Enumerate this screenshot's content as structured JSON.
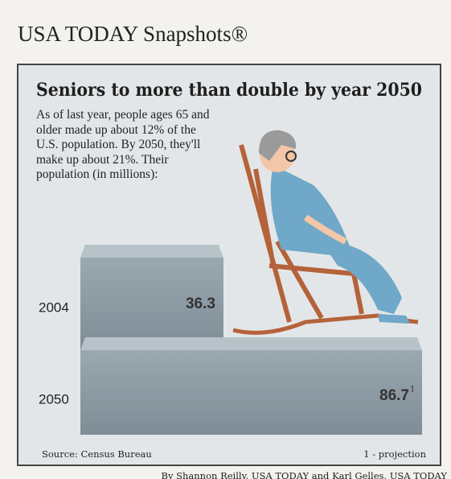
{
  "chart_data": {
    "type": "bar",
    "orientation": "horizontal",
    "header": "USA TODAY Snapshots®",
    "title": "Seniors to more than double by year 2050",
    "subtitle": "As of last year, people ages 65 and older made up about 12% of the U.S. population. By 2050, they'll make up about 21%. Their population (in millions):",
    "categories": [
      "2004",
      "2050"
    ],
    "values": [
      36.3,
      86.7
    ],
    "footnote_mark": "1",
    "color": "#8d9ba3",
    "source": "Source: Census Bureau",
    "footnote": "1 - projection",
    "credit": "By Shannon Reilly, USA TODAY and Karl Gelles, USA TODAY"
  }
}
